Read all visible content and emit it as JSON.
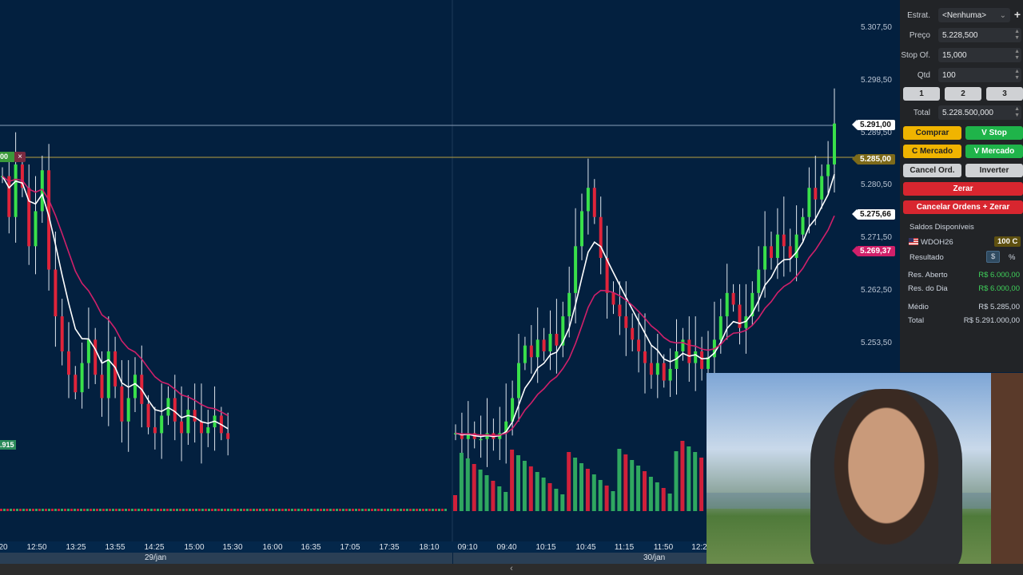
{
  "price_axis": {
    "labels": [
      "5.307,50",
      "5.298,50",
      "5.289,50",
      "5.280,50",
      "5.271,50",
      "5.262,50",
      "5.253,50"
    ],
    "values": [
      5307.5,
      5298.5,
      5289.5,
      5280.5,
      5271.5,
      5262.5,
      5253.5
    ]
  },
  "price_tags": {
    "last": "5.291,00",
    "position": "5.285,00",
    "ema_fast": "5.275,66",
    "ema_slow": "5.269,37"
  },
  "order_line": {
    "label": "00",
    "close_icon": "×",
    "stop_label": ".915"
  },
  "time_axis": [
    "20",
    "12:50",
    "13:25",
    "13:55",
    "14:25",
    "15:00",
    "15:30",
    "16:00",
    "16:35",
    "17:05",
    "17:35",
    "18:10",
    "09:10",
    "09:40",
    "10:15",
    "10:45",
    "11:15",
    "11:50",
    "12:2"
  ],
  "dates": [
    "29/jan",
    "30/jan"
  ],
  "scroll_icon": "‹",
  "colors": {
    "bg": "#03203f",
    "up": "#39e04a",
    "down": "#e0243a",
    "ema_fast": "#ffffff",
    "ema_slow": "#d0206a",
    "position": "#b8a040"
  },
  "chart_data": {
    "type": "candlestick",
    "session1_closes": [
      5282,
      5275,
      5284,
      5280,
      5270,
      5276,
      5283,
      5266,
      5258,
      5252,
      5248,
      5245,
      5250,
      5254,
      5248,
      5244,
      5252,
      5246,
      5240,
      5244,
      5248,
      5243,
      5239,
      5238,
      5241,
      5244,
      5240,
      5238,
      5242,
      5240,
      5238,
      5239,
      5241,
      5238,
      5237
    ],
    "session2_closes": [
      5238,
      5237,
      5238,
      5237,
      5237,
      5238,
      5237,
      5238,
      5240,
      5244,
      5250,
      5253,
      5251,
      5254,
      5252,
      5255,
      5253,
      5258,
      5262,
      5270,
      5276,
      5280,
      5275,
      5268,
      5262,
      5260,
      5258,
      5256,
      5254,
      5252,
      5250,
      5248,
      5250,
      5247,
      5249,
      5252,
      5254,
      5250,
      5252,
      5249,
      5251,
      5254,
      5258,
      5262,
      5260,
      5256,
      5258,
      5262,
      5266,
      5270,
      5268,
      5272,
      5270,
      5268,
      5272,
      5275,
      5280,
      5278,
      5282,
      5284,
      5291
    ]
  },
  "panel": {
    "estrat_label": "Estrat.",
    "estrat_value": "<Nenhuma>",
    "add_icon": "+",
    "preco_label": "Preço",
    "preco_value": "5.228,500",
    "stop_label": "Stop Of.",
    "stop_value": "15,000",
    "qtd_label": "Qtd",
    "qtd_value": "100",
    "qty_buttons": [
      "1",
      "2",
      "3"
    ],
    "total_label": "Total",
    "total_value": "5.228.500,000",
    "buttons": {
      "comprar": "Comprar",
      "v_stop": "V Stop",
      "c_mercado": "C Mercado",
      "v_mercado": "V Mercado",
      "cancel": "Cancel Ord.",
      "inverter": "Inverter",
      "zerar": "Zerar",
      "cancel_zerar": "Cancelar Ordens + Zerar"
    },
    "saldos": "Saldos Disponíveis",
    "asset": "WDOH26",
    "asset_qty": "100 C",
    "resultado": "Resultado",
    "dollar": "$",
    "percent": "%",
    "res_aberto_label": "Res. Aberto",
    "res_aberto": "R$ 6.000,00",
    "res_dia_label": "Res. do Dia",
    "res_dia": "R$ 6.000,00",
    "medio_label": "Médio",
    "medio": "R$ 5.285,00",
    "total2_label": "Total",
    "total2": "R$ 5.291.000,00"
  }
}
